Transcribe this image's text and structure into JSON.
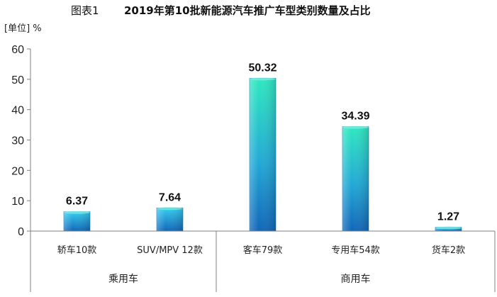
{
  "title": {
    "prefix": "图表1",
    "main": "2019年第10批新能源汽车推广车型类别数量及占比"
  },
  "unit_label": "[单位] %",
  "chart_data": {
    "type": "bar",
    "title": "2019年第10批新能源汽车推广车型类别数量及占比",
    "xlabel": "",
    "ylabel": "[单位] %",
    "ylim": [
      0,
      60
    ],
    "yticks": [
      "0",
      "10",
      "20",
      "30",
      "40",
      "50",
      "60"
    ],
    "grid": false,
    "categories": [
      "轿车10款",
      "SUV/MPV 12款",
      "客车79款",
      "专用车54款",
      "货车2款"
    ],
    "values": [
      6.37,
      7.64,
      50.32,
      34.39,
      1.27
    ],
    "data_labels": [
      "6.37",
      "7.64",
      "50.32",
      "34.39",
      "1.27"
    ],
    "bar_colors": [
      "#1cb0e6",
      "#1cb0e6",
      "#2ee0b8",
      "#2ee0b8",
      "#1cb0e6"
    ],
    "groups": [
      {
        "label": "乘用车",
        "categories": [
          "轿车10款",
          "SUV/MPV 12款"
        ]
      },
      {
        "label": "商用车",
        "categories": [
          "客车79款",
          "专用车54款",
          "货车2款"
        ]
      }
    ]
  }
}
